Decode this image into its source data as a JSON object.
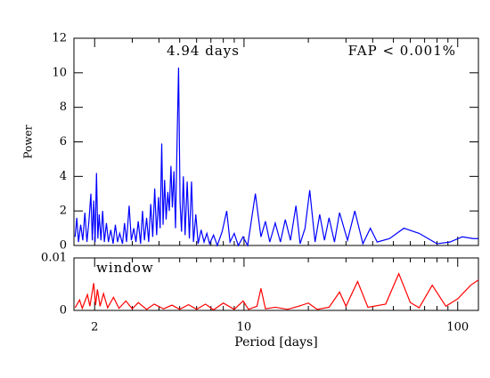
{
  "chart_data": [
    {
      "type": "line",
      "ylabel": "Power",
      "annotations": [
        "4.94 days",
        "FAP < 0.001%"
      ],
      "log_x": true,
      "xlim": [
        1.6,
        125
      ],
      "xticks": [
        2,
        10,
        100
      ],
      "xminorticks": [
        3,
        4,
        5,
        6,
        7,
        8,
        9,
        20,
        30,
        40,
        50,
        60,
        70,
        80,
        90
      ],
      "ylim": [
        0,
        12
      ],
      "yticks": [
        0,
        2,
        4,
        6,
        8,
        10,
        12
      ],
      "series": [
        {
          "name": "power",
          "color": "#0000ff",
          "x": [
            1.62,
            1.65,
            1.68,
            1.72,
            1.76,
            1.8,
            1.84,
            1.88,
            1.92,
            1.95,
            1.98,
            2.01,
            2.04,
            2.07,
            2.1,
            2.14,
            2.18,
            2.22,
            2.27,
            2.32,
            2.38,
            2.44,
            2.5,
            2.56,
            2.62,
            2.7,
            2.76,
            2.82,
            2.9,
            2.97,
            3.05,
            3.12,
            3.2,
            3.28,
            3.35,
            3.42,
            3.5,
            3.58,
            3.66,
            3.74,
            3.82,
            3.9,
            3.98,
            4.05,
            4.12,
            4.18,
            4.25,
            4.32,
            4.4,
            4.47,
            4.55,
            4.62,
            4.7,
            4.78,
            4.86,
            4.94,
            5.02,
            5.1,
            5.2,
            5.3,
            5.42,
            5.55,
            5.68,
            5.8,
            5.95,
            6.1,
            6.3,
            6.5,
            6.7,
            6.9,
            7.2,
            7.5,
            7.9,
            8.3,
            8.6,
            9.0,
            9.4,
            9.9,
            10.4,
            11.3,
            12.0,
            12.6,
            13.2,
            14.0,
            14.8,
            15.6,
            16.5,
            17.5,
            18.3,
            19.3,
            20.3,
            21.5,
            22.6,
            23.8,
            25.0,
            26.5,
            28.0,
            30.5,
            33.0,
            36.0,
            39.0,
            42.0,
            48.0,
            56.0,
            66.0,
            80.0,
            92.0,
            105.0,
            118.0,
            125
          ],
          "values": [
            0.5,
            1.6,
            0.2,
            1.2,
            0.3,
            1.9,
            0.2,
            1.4,
            3.0,
            0.3,
            2.6,
            0.2,
            4.2,
            0.4,
            1.8,
            0.3,
            2.0,
            0.2,
            1.3,
            0.2,
            0.9,
            0.1,
            1.2,
            0.2,
            0.7,
            0.1,
            1.3,
            0.2,
            2.3,
            0.3,
            1.0,
            0.2,
            1.4,
            0.1,
            2.0,
            0.3,
            1.6,
            0.2,
            2.4,
            0.5,
            3.3,
            0.6,
            2.8,
            1.0,
            5.9,
            1.2,
            3.8,
            1.5,
            3.1,
            2.0,
            4.6,
            2.2,
            4.3,
            1.0,
            6.0,
            10.3,
            2.5,
            0.8,
            4.0,
            0.6,
            3.7,
            0.4,
            3.7,
            0.2,
            1.8,
            0.1,
            0.9,
            0.2,
            0.7,
            0.1,
            0.6,
            0.0,
            0.8,
            2.0,
            0.2,
            0.7,
            0.0,
            0.5,
            0.0,
            3.0,
            0.5,
            1.4,
            0.2,
            1.3,
            0.2,
            1.5,
            0.3,
            2.3,
            0.1,
            1.0,
            3.2,
            0.2,
            1.8,
            0.3,
            1.6,
            0.2,
            1.9,
            0.3,
            2.0,
            0.1,
            1.0,
            0.2,
            0.4,
            1.0,
            0.7,
            0.1,
            0.2,
            0.5,
            0.4,
            0.4
          ]
        }
      ]
    },
    {
      "type": "line",
      "xlabel": "Period [days]",
      "annotations": [
        "window"
      ],
      "log_x": true,
      "xlim": [
        1.6,
        125
      ],
      "xticks": [
        2,
        10,
        100
      ],
      "xminorticks": [
        3,
        4,
        5,
        6,
        7,
        8,
        9,
        20,
        30,
        40,
        50,
        60,
        70,
        80,
        90
      ],
      "ylim": [
        0,
        0.01
      ],
      "yticks": [
        0,
        0.01
      ],
      "series": [
        {
          "name": "window",
          "color": "#ff0000",
          "x": [
            1.62,
            1.7,
            1.75,
            1.85,
            1.9,
            1.98,
            2.02,
            2.06,
            2.12,
            2.2,
            2.3,
            2.45,
            2.6,
            2.8,
            3.0,
            3.2,
            3.5,
            3.8,
            4.2,
            4.6,
            5.0,
            5.5,
            6.0,
            6.6,
            7.2,
            8.0,
            9.0,
            9.9,
            10.5,
            11.5,
            12.0,
            12.6,
            14,
            16,
            18,
            20,
            22,
            25,
            28,
            30,
            34,
            38,
            46,
            53,
            60,
            66,
            76,
            88,
            100,
            115,
            125
          ],
          "values": [
            0.0005,
            0.002,
            0.0004,
            0.003,
            0.0008,
            0.0052,
            0.001,
            0.004,
            0.0008,
            0.0032,
            0.0005,
            0.0025,
            0.0004,
            0.0018,
            0.0003,
            0.0015,
            0.0002,
            0.0012,
            0.0003,
            0.001,
            0.0002,
            0.0011,
            0.0002,
            0.0012,
            0.0001,
            0.0014,
            0.0002,
            0.0018,
            0.0002,
            0.0008,
            0.0042,
            0.0003,
            0.0006,
            0.0002,
            0.0008,
            0.0014,
            0.0002,
            0.0006,
            0.0035,
            0.0008,
            0.0055,
            0.0006,
            0.0012,
            0.007,
            0.0015,
            0.0005,
            0.0048,
            0.0008,
            0.0022,
            0.0048,
            0.0058
          ]
        }
      ]
    }
  ]
}
